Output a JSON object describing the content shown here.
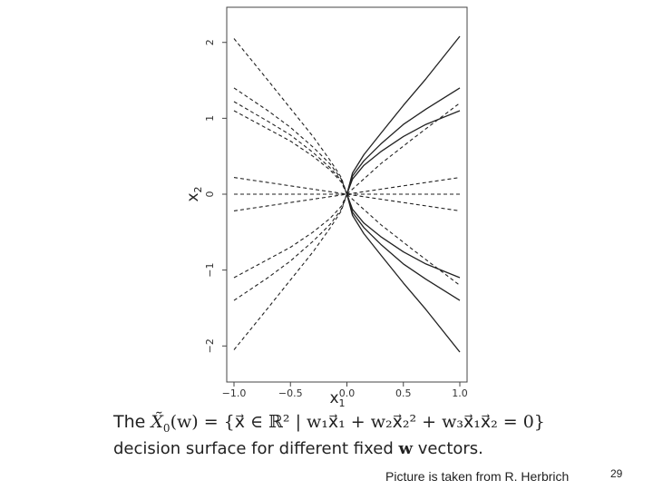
{
  "chart_data": {
    "type": "line",
    "xlabel": "x",
    "xlabel_sub": "1",
    "ylabel": "x",
    "ylabel_sub": "2",
    "xlim": [
      -1.0,
      1.0
    ],
    "ylim": [
      -2.2,
      2.2
    ],
    "x_ticks": [
      "-1.0",
      "-0.5",
      "0.0",
      "0.5",
      "1.0"
    ],
    "y_ticks": [
      "-2",
      "-1",
      "0",
      "1",
      "2"
    ],
    "grid": false,
    "solid_series": [
      {
        "points": [
          [
            0,
            0
          ],
          [
            0.05,
            0.28
          ],
          [
            0.15,
            0.52
          ],
          [
            0.3,
            0.8
          ],
          [
            0.5,
            1.17
          ],
          [
            0.7,
            1.52
          ],
          [
            1.0,
            2.08
          ]
        ]
      },
      {
        "points": [
          [
            0,
            0
          ],
          [
            0.05,
            0.24
          ],
          [
            0.15,
            0.44
          ],
          [
            0.3,
            0.66
          ],
          [
            0.5,
            0.92
          ],
          [
            0.7,
            1.12
          ],
          [
            1.0,
            1.4
          ]
        ]
      },
      {
        "points": [
          [
            0,
            0
          ],
          [
            0.05,
            0.2
          ],
          [
            0.15,
            0.38
          ],
          [
            0.3,
            0.56
          ],
          [
            0.5,
            0.76
          ],
          [
            0.7,
            0.92
          ],
          [
            1.0,
            1.1
          ]
        ]
      },
      {
        "points": [
          [
            0,
            0
          ],
          [
            0.05,
            -0.28
          ],
          [
            0.15,
            -0.52
          ],
          [
            0.3,
            -0.8
          ],
          [
            0.5,
            -1.17
          ],
          [
            0.7,
            -1.52
          ],
          [
            1.0,
            -2.08
          ]
        ]
      },
      {
        "points": [
          [
            0,
            0
          ],
          [
            0.05,
            -0.24
          ],
          [
            0.15,
            -0.44
          ],
          [
            0.3,
            -0.66
          ],
          [
            0.5,
            -0.92
          ],
          [
            0.7,
            -1.12
          ],
          [
            1.0,
            -1.4
          ]
        ]
      },
      {
        "points": [
          [
            0,
            0
          ],
          [
            0.05,
            -0.2
          ],
          [
            0.15,
            -0.38
          ],
          [
            0.3,
            -0.56
          ],
          [
            0.5,
            -0.76
          ],
          [
            0.7,
            -0.92
          ],
          [
            1.0,
            -1.1
          ]
        ]
      }
    ],
    "dashed_series": [
      {
        "points": [
          [
            -1.0,
            2.05
          ],
          [
            -0.7,
            1.5
          ],
          [
            -0.5,
            1.13
          ],
          [
            -0.3,
            0.76
          ],
          [
            -0.15,
            0.45
          ],
          [
            -0.05,
            0.22
          ],
          [
            0,
            0
          ]
        ]
      },
      {
        "points": [
          [
            -1.0,
            1.4
          ],
          [
            -0.7,
            1.1
          ],
          [
            -0.5,
            0.88
          ],
          [
            -0.3,
            0.62
          ],
          [
            -0.15,
            0.4
          ],
          [
            -0.05,
            0.2
          ],
          [
            0,
            0
          ]
        ]
      },
      {
        "points": [
          [
            -1.0,
            1.22
          ],
          [
            -0.7,
            0.96
          ],
          [
            -0.5,
            0.78
          ],
          [
            -0.3,
            0.55
          ],
          [
            -0.15,
            0.35
          ],
          [
            -0.05,
            0.18
          ],
          [
            0,
            0
          ]
        ]
      },
      {
        "points": [
          [
            -1.0,
            1.1
          ],
          [
            -0.7,
            0.86
          ],
          [
            -0.5,
            0.7
          ],
          [
            -0.3,
            0.5
          ],
          [
            -0.15,
            0.32
          ],
          [
            -0.05,
            0.16
          ],
          [
            0,
            0
          ]
        ]
      },
      {
        "points": [
          [
            -1.0,
            -2.05
          ],
          [
            -0.7,
            -1.5
          ],
          [
            -0.5,
            -1.13
          ],
          [
            -0.3,
            -0.76
          ],
          [
            -0.15,
            -0.45
          ],
          [
            -0.05,
            -0.22
          ],
          [
            0,
            0
          ]
        ]
      },
      {
        "points": [
          [
            -1.0,
            -1.4
          ],
          [
            -0.7,
            -1.1
          ],
          [
            -0.5,
            -0.88
          ],
          [
            -0.3,
            -0.62
          ],
          [
            -0.15,
            -0.4
          ],
          [
            -0.05,
            -0.2
          ],
          [
            0,
            0
          ]
        ]
      },
      {
        "points": [
          [
            -1.0,
            -1.1
          ],
          [
            -0.7,
            -0.86
          ],
          [
            -0.5,
            -0.7
          ],
          [
            -0.3,
            -0.5
          ],
          [
            -0.15,
            -0.32
          ],
          [
            -0.05,
            -0.16
          ],
          [
            0,
            0
          ]
        ]
      },
      {
        "points": [
          [
            -1.0,
            0.22
          ],
          [
            1.0,
            -0.22
          ]
        ]
      },
      {
        "points": [
          [
            -1.0,
            0.0
          ],
          [
            1.0,
            0.0
          ]
        ]
      },
      {
        "points": [
          [
            -1.0,
            -0.22
          ],
          [
            1.0,
            0.22
          ]
        ]
      },
      {
        "points": [
          [
            0,
            0
          ],
          [
            0.3,
            0.4
          ],
          [
            0.6,
            0.75
          ],
          [
            1.0,
            1.2
          ]
        ]
      },
      {
        "points": [
          [
            0,
            0
          ],
          [
            0.3,
            -0.4
          ],
          [
            0.6,
            -0.75
          ],
          [
            1.0,
            -1.2
          ]
        ]
      }
    ]
  },
  "caption": {
    "line1_prefix": "The ",
    "line1_set": "X̃",
    "line1_set_sub": "0",
    "line1_formula": "(w) = {x⃗ ∈ ℝ² | w₁x⃗₁ + w₂x⃗₂² + w₃x⃗₁x⃗₂ = 0}",
    "line2_pre": "decision surface for different fixed ",
    "line2_w": "w",
    "line2_post": " vectors."
  },
  "footer": {
    "credit": "Picture is taken from R. Herbrich",
    "slide_number": "29"
  }
}
